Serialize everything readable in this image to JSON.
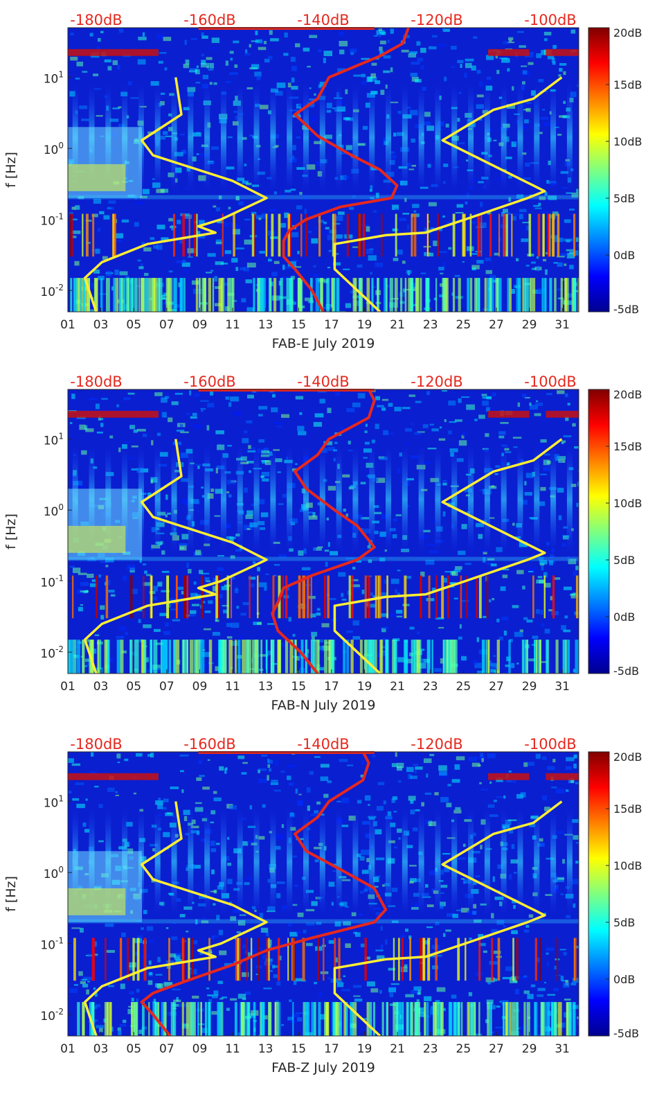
{
  "chart_data": [
    {
      "type": "heatmap",
      "xlabel": "FAB-E July 2019",
      "ylabel": "f [Hz]",
      "yscale": "log",
      "ylim": [
        0.005,
        50
      ],
      "xlim": [
        1,
        32
      ],
      "x_ticks": [
        "01",
        "03",
        "05",
        "07",
        "09",
        "11",
        "13",
        "15",
        "17",
        "19",
        "21",
        "23",
        "25",
        "27",
        "29",
        "31"
      ],
      "y_ticks": [
        "10-2",
        "100",
        "10-1",
        "101"
      ],
      "colorbar": {
        "range": [
          -5,
          20
        ],
        "ticks": [
          "20dB",
          "15dB",
          "10dB",
          "5dB",
          "0dB",
          "-5dB"
        ],
        "colormap": "jet"
      },
      "top_axis": {
        "color": "#e6281e",
        "ticks": [
          "-180dB",
          "-160dB",
          "-140dB",
          "-120dB",
          "-100dB"
        ],
        "range": [
          -185,
          -95
        ]
      },
      "series": [
        {
          "color": "#e6281e",
          "axis": "top",
          "points": [
            [
              0.005,
              -140
            ],
            [
              0.01,
              -142
            ],
            [
              0.02,
              -145
            ],
            [
              0.03,
              -147
            ],
            [
              0.05,
              -147
            ],
            [
              0.07,
              -146
            ],
            [
              0.1,
              -143
            ],
            [
              0.15,
              -137
            ],
            [
              0.2,
              -128
            ],
            [
              0.3,
              -127
            ],
            [
              0.5,
              -130
            ],
            [
              0.8,
              -135
            ],
            [
              1.5,
              -141
            ],
            [
              3,
              -145
            ],
            [
              5,
              -141
            ],
            [
              10,
              -139
            ],
            [
              20,
              -130
            ],
            [
              30,
              -126
            ],
            [
              50,
              -125
            ]
          ]
        },
        {
          "color": "#ffee33",
          "axis": "top",
          "points": [
            [
              0.005,
              -180
            ],
            [
              0.015,
              -182
            ],
            [
              0.025,
              -179
            ],
            [
              0.045,
              -171
            ],
            [
              0.065,
              -159
            ],
            [
              0.08,
              -162
            ],
            [
              0.1,
              -158
            ],
            [
              0.2,
              -150
            ],
            [
              0.35,
              -156
            ],
            [
              0.8,
              -170
            ],
            [
              1.3,
              -172
            ],
            [
              3,
              -165
            ],
            [
              10,
              -166
            ]
          ]
        },
        {
          "color": "#ffee33",
          "axis": "top",
          "points": [
            [
              0.005,
              -130
            ],
            [
              0.02,
              -138
            ],
            [
              0.045,
              -138
            ],
            [
              0.06,
              -129
            ],
            [
              0.065,
              -122
            ],
            [
              0.1,
              -115
            ],
            [
              0.2,
              -104
            ],
            [
              0.25,
              -101
            ],
            [
              0.3,
              -103
            ],
            [
              1.3,
              -119
            ],
            [
              3.5,
              -110
            ],
            [
              5,
              -103
            ],
            [
              10,
              -98
            ]
          ]
        }
      ]
    },
    {
      "type": "heatmap",
      "xlabel": "FAB-N July 2019",
      "ylabel": "f [Hz]",
      "yscale": "log",
      "ylim": [
        0.005,
        50
      ],
      "xlim": [
        1,
        32
      ],
      "x_ticks": [
        "01",
        "03",
        "05",
        "07",
        "09",
        "11",
        "13",
        "15",
        "17",
        "19",
        "21",
        "23",
        "25",
        "27",
        "29",
        "31"
      ],
      "y_ticks": [
        "10-2",
        "100",
        "10-1",
        "101"
      ],
      "colorbar": {
        "range": [
          -5,
          20
        ],
        "ticks": [
          "20dB",
          "15dB",
          "10dB",
          "5dB",
          "0dB",
          "-5dB"
        ],
        "colormap": "jet"
      },
      "top_axis": {
        "color": "#e6281e",
        "ticks": [
          "-180dB",
          "-160dB",
          "-140dB",
          "-120dB",
          "-100dB"
        ],
        "range": [
          -185,
          -95
        ]
      },
      "series": [
        {
          "color": "#e6281e",
          "axis": "top",
          "points": [
            [
              0.005,
              -141
            ],
            [
              0.01,
              -144
            ],
            [
              0.02,
              -148
            ],
            [
              0.035,
              -149
            ],
            [
              0.05,
              -148
            ],
            [
              0.08,
              -147
            ],
            [
              0.12,
              -142
            ],
            [
              0.2,
              -134
            ],
            [
              0.3,
              -131
            ],
            [
              0.6,
              -134
            ],
            [
              1,
              -138
            ],
            [
              2,
              -143
            ],
            [
              3.5,
              -145
            ],
            [
              6,
              -141
            ],
            [
              10,
              -139
            ],
            [
              20,
              -132
            ],
            [
              35,
              -131
            ],
            [
              50,
              -132
            ]
          ]
        },
        {
          "color": "#ffee33",
          "axis": "top",
          "points": [
            [
              0.005,
              -180
            ],
            [
              0.015,
              -182
            ],
            [
              0.025,
              -179
            ],
            [
              0.045,
              -171
            ],
            [
              0.065,
              -159
            ],
            [
              0.08,
              -162
            ],
            [
              0.1,
              -158
            ],
            [
              0.2,
              -150
            ],
            [
              0.35,
              -156
            ],
            [
              0.8,
              -170
            ],
            [
              1.3,
              -172
            ],
            [
              3,
              -165
            ],
            [
              10,
              -166
            ]
          ]
        },
        {
          "color": "#ffee33",
          "axis": "top",
          "points": [
            [
              0.005,
              -130
            ],
            [
              0.02,
              -138
            ],
            [
              0.045,
              -138
            ],
            [
              0.06,
              -129
            ],
            [
              0.065,
              -122
            ],
            [
              0.1,
              -115
            ],
            [
              0.2,
              -104
            ],
            [
              0.25,
              -101
            ],
            [
              0.3,
              -103
            ],
            [
              1.3,
              -119
            ],
            [
              3.5,
              -110
            ],
            [
              5,
              -103
            ],
            [
              10,
              -98
            ]
          ]
        }
      ]
    },
    {
      "type": "heatmap",
      "xlabel": "FAB-Z July 2019",
      "ylabel": "f [Hz]",
      "yscale": "log",
      "ylim": [
        0.005,
        50
      ],
      "xlim": [
        1,
        32
      ],
      "x_ticks": [
        "01",
        "03",
        "05",
        "07",
        "09",
        "11",
        "13",
        "15",
        "17",
        "19",
        "21",
        "23",
        "25",
        "27",
        "29",
        "31"
      ],
      "y_ticks": [
        "10-2",
        "100",
        "10-1",
        "101"
      ],
      "colorbar": {
        "range": [
          -5,
          20
        ],
        "ticks": [
          "20dB",
          "15dB",
          "10dB",
          "5dB",
          "0dB",
          "-5dB"
        ],
        "colormap": "jet"
      },
      "top_axis": {
        "color": "#e6281e",
        "ticks": [
          "-180dB",
          "-160dB",
          "-140dB",
          "-120dB",
          "-100dB"
        ],
        "range": [
          -185,
          -95
        ]
      },
      "series": [
        {
          "color": "#e6281e",
          "axis": "top",
          "points": [
            [
              0.005,
              -167
            ],
            [
              0.01,
              -170
            ],
            [
              0.015,
              -172
            ],
            [
              0.02,
              -170
            ],
            [
              0.03,
              -164
            ],
            [
              0.05,
              -156
            ],
            [
              0.08,
              -150
            ],
            [
              0.12,
              -142
            ],
            [
              0.2,
              -131
            ],
            [
              0.3,
              -129
            ],
            [
              0.6,
              -131
            ],
            [
              1,
              -136
            ],
            [
              2,
              -143
            ],
            [
              3.5,
              -145
            ],
            [
              6,
              -141
            ],
            [
              10,
              -139
            ],
            [
              20,
              -133
            ],
            [
              35,
              -132
            ],
            [
              50,
              -133
            ]
          ]
        },
        {
          "color": "#ffee33",
          "axis": "top",
          "points": [
            [
              0.005,
              -180
            ],
            [
              0.015,
              -182
            ],
            [
              0.025,
              -179
            ],
            [
              0.045,
              -171
            ],
            [
              0.065,
              -159
            ],
            [
              0.08,
              -162
            ],
            [
              0.1,
              -158
            ],
            [
              0.2,
              -150
            ],
            [
              0.35,
              -156
            ],
            [
              0.8,
              -170
            ],
            [
              1.3,
              -172
            ],
            [
              3,
              -165
            ],
            [
              10,
              -166
            ]
          ]
        },
        {
          "color": "#ffee33",
          "axis": "top",
          "points": [
            [
              0.005,
              -130
            ],
            [
              0.02,
              -138
            ],
            [
              0.045,
              -138
            ],
            [
              0.06,
              -129
            ],
            [
              0.065,
              -122
            ],
            [
              0.1,
              -115
            ],
            [
              0.2,
              -104
            ],
            [
              0.25,
              -101
            ],
            [
              0.3,
              -103
            ],
            [
              1.3,
              -119
            ],
            [
              3.5,
              -110
            ],
            [
              5,
              -103
            ],
            [
              10,
              -98
            ]
          ]
        }
      ]
    }
  ]
}
